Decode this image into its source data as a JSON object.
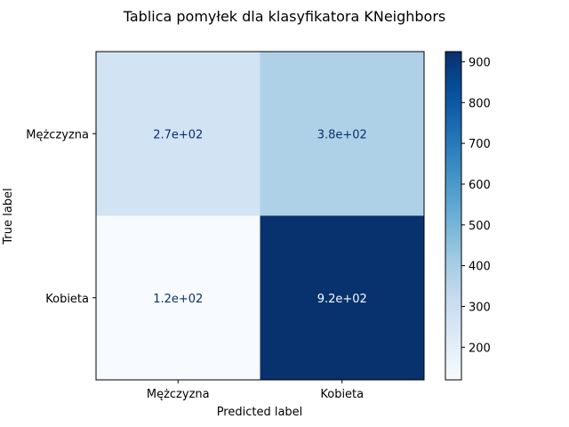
{
  "chart_data": {
    "type": "heatmap",
    "title": "Tablica pomyłek dla klasyfikatora KNeighbors",
    "xlabel": "Predicted label",
    "ylabel": "True label",
    "x_categories": [
      "Mężczyzna",
      "Kobieta"
    ],
    "y_categories": [
      "Mężczyzna",
      "Kobieta"
    ],
    "values": [
      [
        270,
        380
      ],
      [
        120,
        920
      ]
    ],
    "value_labels": [
      [
        "2.7e+02",
        "3.8e+02"
      ],
      [
        "1.2e+02",
        "9.2e+02"
      ]
    ],
    "colormap": "Blues",
    "colorbar": {
      "range": [
        120,
        925
      ],
      "ticks": [
        200,
        300,
        400,
        500,
        600,
        700,
        800,
        900
      ],
      "tick_labels": [
        "200",
        "300",
        "400",
        "500",
        "600",
        "700",
        "800",
        "900"
      ]
    }
  }
}
